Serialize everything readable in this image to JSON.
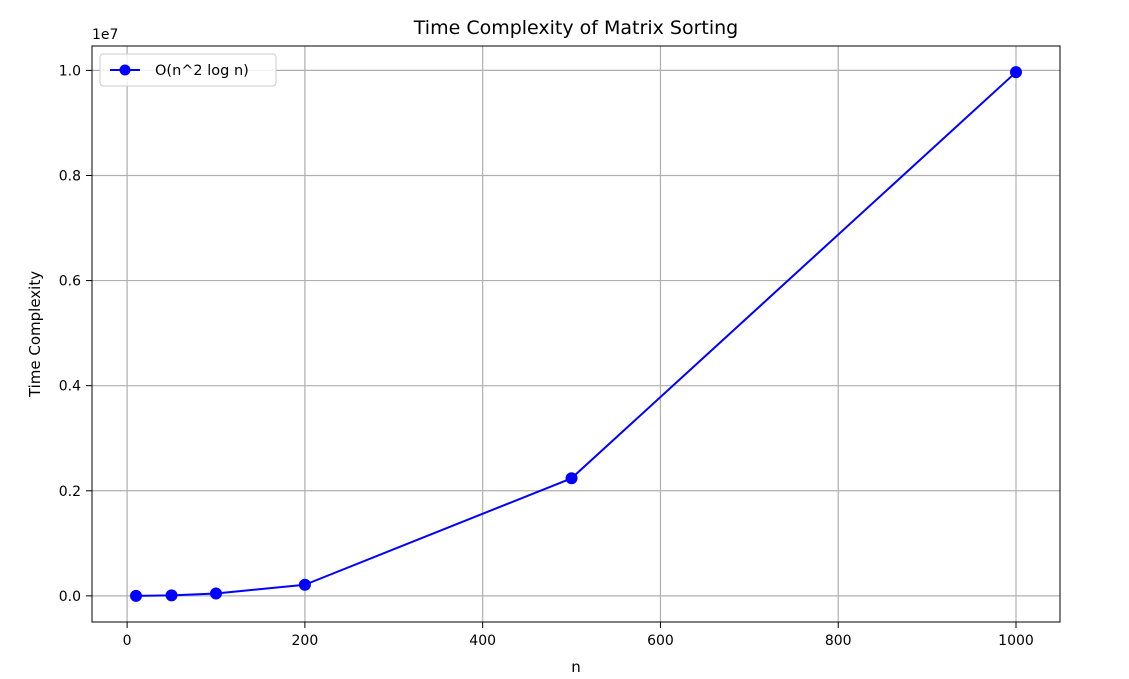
{
  "chart_data": {
    "type": "line",
    "title": "Time Complexity of Matrix Sorting",
    "xlabel": "n",
    "ylabel": "Time Complexity",
    "y_offset_label": "1e7",
    "x": [
      10,
      50,
      100,
      200,
      500,
      1000
    ],
    "series": [
      {
        "name": "O(n^2 log n)",
        "values": [
          230,
          9780,
          46051,
          211933,
          2238322,
          9965784
        ],
        "color": "#0000ff",
        "marker": "circle"
      }
    ],
    "xlim": [
      -39.5,
      1049.5
    ],
    "ylim": [
      -497000,
      10464000
    ],
    "xticks": [
      0,
      200,
      400,
      600,
      800,
      1000
    ],
    "xtick_labels": [
      "0",
      "200",
      "400",
      "600",
      "800",
      "1000"
    ],
    "yticks": [
      0,
      2000000,
      4000000,
      6000000,
      8000000,
      10000000
    ],
    "ytick_labels": [
      "0.0",
      "0.2",
      "0.4",
      "0.6",
      "0.8",
      "1.0"
    ],
    "grid": true,
    "legend_position": "upper-left"
  }
}
